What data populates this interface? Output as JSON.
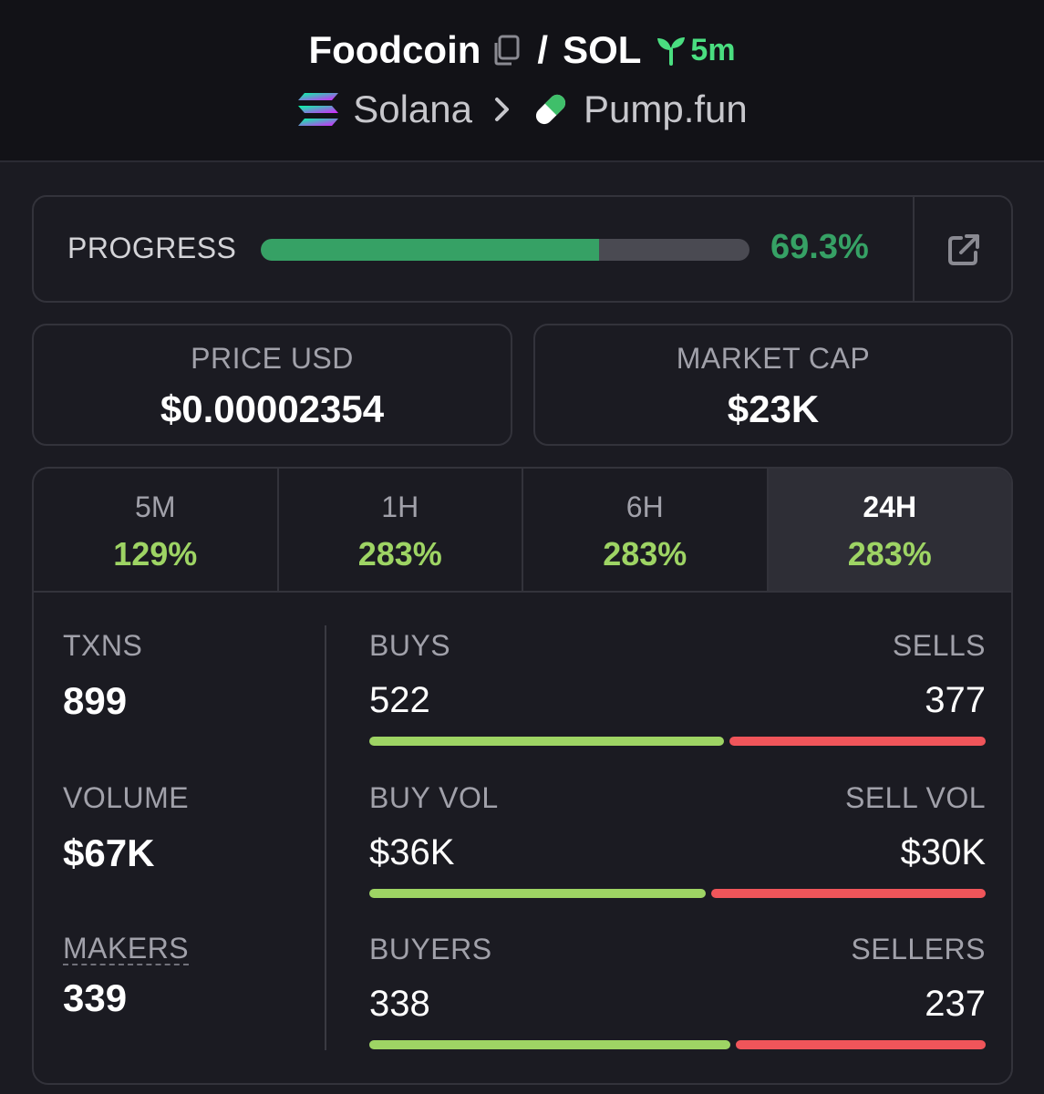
{
  "header": {
    "token_name": "Foodcoin",
    "separator": "/",
    "quote": "SOL",
    "age": "5m",
    "chain": "Solana",
    "dex": "Pump.fun"
  },
  "progress": {
    "label": "PROGRESS",
    "value_text": "69.3%",
    "fraction": 0.693
  },
  "stats": {
    "price": {
      "label": "PRICE USD",
      "value": "$0.00002354"
    },
    "mcap": {
      "label": "MARKET CAP",
      "value": "$23K"
    }
  },
  "tabs": [
    {
      "label": "5M",
      "change": "129%"
    },
    {
      "label": "1H",
      "change": "283%"
    },
    {
      "label": "6H",
      "change": "283%"
    },
    {
      "label": "24H",
      "change": "283%",
      "active": true
    }
  ],
  "metrics": {
    "txns": {
      "label": "TXNS",
      "value": "899"
    },
    "volume": {
      "label": "VOLUME",
      "value": "$67K"
    },
    "makers": {
      "label": "MAKERS",
      "value": "339"
    }
  },
  "ratios": {
    "txns": {
      "left_label": "BUYS",
      "left_value": "522",
      "right_label": "SELLS",
      "right_value": "377",
      "buy_fraction": 0.58
    },
    "volume": {
      "left_label": "BUY VOL",
      "left_value": "$36K",
      "right_label": "SELL VOL",
      "right_value": "$30K",
      "buy_fraction": 0.55
    },
    "makers": {
      "left_label": "BUYERS",
      "left_value": "338",
      "right_label": "SELLERS",
      "right_value": "237",
      "buy_fraction": 0.59
    }
  },
  "colors": {
    "accent_green": "#36a165",
    "buy_green": "#9ed464",
    "sell_red": "#f0555a",
    "age_green": "#4ade80"
  },
  "icons": {
    "copy": "copy-icon",
    "sprout": "sprout-icon",
    "solana": "solana-logo-icon",
    "chevron": "chevron-right-icon",
    "pill": "pill-icon",
    "external": "external-link-icon"
  }
}
